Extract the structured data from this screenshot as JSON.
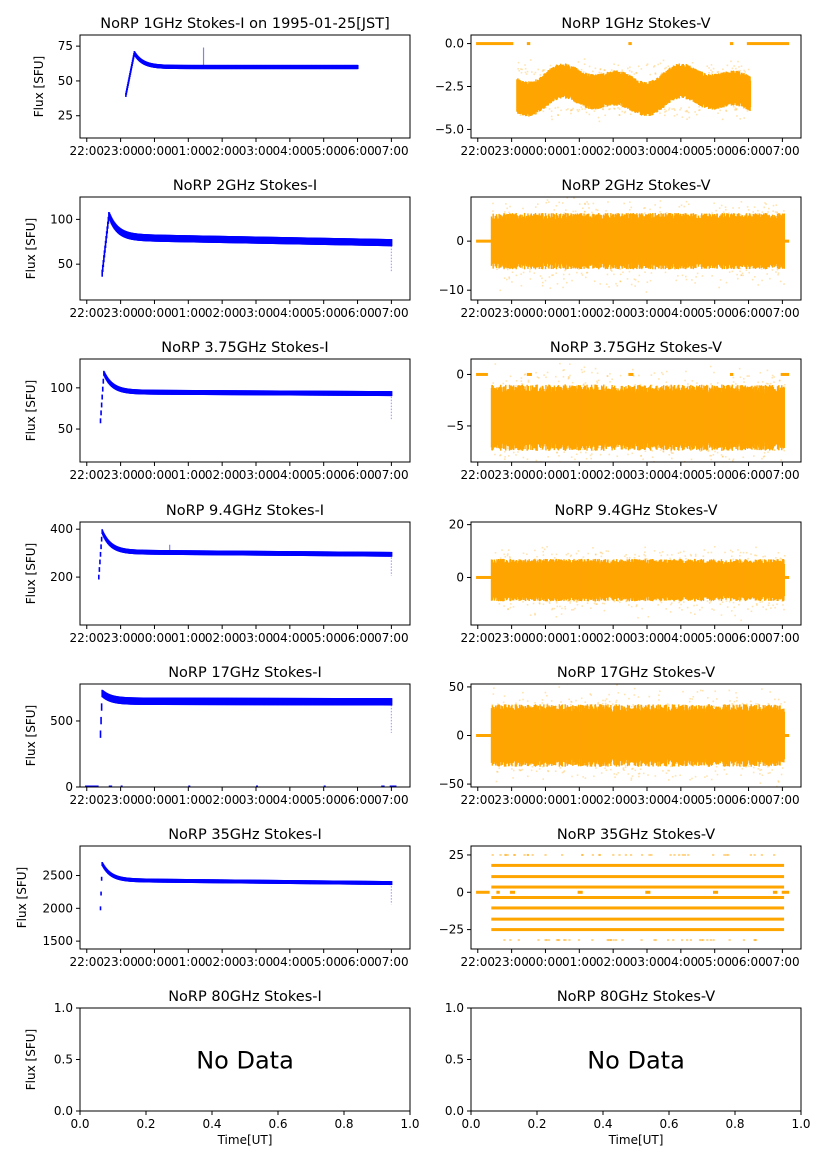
{
  "figure": {
    "date_label": "1995-01-25[JST]",
    "ylabel": "Flux [SFU]",
    "xlabel_bottom": "Time[UT]",
    "no_data_text": "No Data",
    "colors": {
      "stokes_i": "#0000ff",
      "stokes_v": "#ffa500",
      "axes": "#000000"
    }
  },
  "time_axis": {
    "range_hours": [
      -2.2,
      7.55
    ],
    "tick_hours": [
      -2,
      -1,
      0,
      1,
      2,
      3,
      4,
      5,
      6,
      7
    ],
    "tick_labels": [
      "22:00",
      "23:00",
      "00:00",
      "01:00",
      "02:00",
      "03:00",
      "04:00",
      "05:00",
      "06:00",
      "07:00"
    ]
  },
  "chart_data": [
    {
      "id": "i1",
      "type": "scatter",
      "title": "NoRP 1GHz Stokes-I on 1995-01-25[JST]",
      "series": "I",
      "ylim": [
        9,
        83
      ],
      "yticks": [
        25,
        50,
        75
      ],
      "ytick_labels": [
        "25",
        "50",
        "75"
      ],
      "start": -0.85,
      "end": 6.0,
      "rise_from": 40,
      "peak": 70,
      "peak_t": -0.6,
      "level_start": 60,
      "level_end": 60,
      "spread": 1.5,
      "spikes": [
        {
          "t": 1.45,
          "v": 74
        }
      ],
      "zero_marks": []
    },
    {
      "id": "v1",
      "type": "scatter",
      "title": "NoRP 1GHz Stokes-V",
      "series": "V",
      "ylim": [
        -5.5,
        0.5
      ],
      "yticks": [
        0,
        -2.5,
        -5
      ],
      "ytick_labels": [
        "0.0",
        "−2.5",
        "−5.0"
      ],
      "start": -0.85,
      "end": 6.05,
      "center": -2.7,
      "spread": 0.9,
      "wave": 0.6,
      "zero_segments": [
        [
          -2.05,
          -0.95
        ],
        [
          -0.55,
          -0.45
        ],
        [
          2.45,
          2.55
        ],
        [
          5.45,
          5.55
        ],
        [
          5.95,
          7.2
        ]
      ]
    },
    {
      "id": "i2",
      "type": "scatter",
      "title": "NoRP 2GHz Stokes-I",
      "series": "I",
      "ylim": [
        10,
        125
      ],
      "yticks": [
        50,
        100
      ],
      "ytick_labels": [
        "50",
        "100"
      ],
      "start": -1.55,
      "end": 7.0,
      "rise_from": 40,
      "peak": 105,
      "peak_t": -1.35,
      "level_start": 80,
      "level_end": 74,
      "spread": 4,
      "spikes": [],
      "zero_marks": [],
      "end_dip": 42
    },
    {
      "id": "v2",
      "type": "scatter",
      "title": "NoRP 2GHz Stokes-V",
      "series": "V",
      "ylim": [
        -12,
        9
      ],
      "yticks": [
        0,
        -10
      ],
      "ytick_labels": [
        "0",
        "−10"
      ],
      "start": -1.6,
      "end": 7.05,
      "center": 0,
      "spread": 5,
      "wave": 0,
      "zero_segments": [
        [
          -2.05,
          -1.6
        ],
        [
          7.05,
          7.2
        ]
      ]
    },
    {
      "id": "i3",
      "type": "scatter",
      "title": "NoRP 3.75GHz Stokes-I",
      "series": "I",
      "ylim": [
        10,
        135
      ],
      "yticks": [
        50,
        100
      ],
      "ytick_labels": [
        "50",
        "100"
      ],
      "start": -1.6,
      "end": 7.0,
      "rise_from": 60,
      "peak": 118,
      "peak_t": -1.5,
      "level_start": 95,
      "level_end": 93,
      "spread": 3,
      "spikes": [],
      "zero_marks": [],
      "end_dip": 62
    },
    {
      "id": "v3",
      "type": "scatter",
      "title": "NoRP 3.75GHz Stokes-V",
      "series": "V",
      "ylim": [
        -8.5,
        1.5
      ],
      "yticks": [
        0,
        -5
      ],
      "ytick_labels": [
        "0",
        "−5"
      ],
      "start": -1.6,
      "end": 7.05,
      "center": -4.2,
      "spread": 2.8,
      "wave": 0,
      "zero_segments": [
        [
          -2.05,
          -1.7
        ],
        [
          -0.55,
          -0.4
        ],
        [
          2.45,
          2.6
        ],
        [
          5.45,
          5.55
        ],
        [
          6.95,
          7.2
        ]
      ]
    },
    {
      "id": "i4",
      "type": "scatter",
      "title": "NoRP 9.4GHz Stokes-I",
      "series": "I",
      "ylim": [
        0,
        430
      ],
      "yticks": [
        200,
        400
      ],
      "ytick_labels": [
        "200",
        "400"
      ],
      "start": -1.65,
      "end": 7.0,
      "rise_from": 200,
      "peak": 390,
      "peak_t": -1.55,
      "level_start": 305,
      "level_end": 295,
      "spread": 10,
      "spikes": [
        {
          "t": 0.45,
          "v": 335
        }
      ],
      "zero_marks": [],
      "end_dip": 205
    },
    {
      "id": "v4",
      "type": "scatter",
      "title": "NoRP 9.4GHz Stokes-V",
      "series": "V",
      "ylim": [
        -18,
        21
      ],
      "yticks": [
        0,
        20
      ],
      "ytick_labels": [
        "0",
        "20"
      ],
      "start": -1.6,
      "end": 7.05,
      "center": -1,
      "spread": 7,
      "wave": 0,
      "zero_segments": [
        [
          -2.05,
          -1.6
        ],
        [
          7.05,
          7.2
        ]
      ]
    },
    {
      "id": "i5",
      "type": "scatter",
      "title": "NoRP 17GHz Stokes-I",
      "series": "I",
      "ylim": [
        0,
        780
      ],
      "yticks": [
        0,
        500
      ],
      "ytick_labels": [
        "0",
        "500"
      ],
      "start": -1.6,
      "end": 7.0,
      "rise_from": 400,
      "peak": 710,
      "peak_t": -1.55,
      "level_start": 650,
      "level_end": 645,
      "spread": 28,
      "spikes": [],
      "end_dip": 410,
      "zero_marks": [
        [
          -2.05,
          -1.65
        ],
        [
          -1.35,
          -1.25
        ],
        [
          -1.0,
          -0.95
        ],
        [
          1.0,
          1.05
        ],
        [
          3.0,
          3.05
        ],
        [
          5.0,
          5.05
        ],
        [
          6.7,
          6.8
        ],
        [
          6.95,
          7.15
        ]
      ]
    },
    {
      "id": "v5",
      "type": "scatter",
      "title": "NoRP 17GHz Stokes-V",
      "series": "V",
      "ylim": [
        -53,
        53
      ],
      "yticks": [
        50,
        0,
        -50
      ],
      "ytick_labels": [
        "50",
        "0",
        "−50"
      ],
      "start": -1.6,
      "end": 7.05,
      "center": 0,
      "spread": 28,
      "wave": 0,
      "zero_segments": [
        [
          -2.05,
          -1.6
        ],
        [
          7.05,
          7.2
        ]
      ]
    },
    {
      "id": "i6",
      "type": "scatter",
      "title": "NoRP 35GHz Stokes-I",
      "series": "I",
      "ylim": [
        1380,
        2950
      ],
      "yticks": [
        1500,
        2000,
        2500
      ],
      "ytick_labels": [
        "1500",
        "2000",
        "2500"
      ],
      "start": -1.6,
      "end": 7.0,
      "rise_from": 2000,
      "peak": 2680,
      "peak_t": -1.55,
      "level_start": 2430,
      "level_end": 2385,
      "spread": 30,
      "spikes": [],
      "zero_marks": [],
      "end_dip": 2060
    },
    {
      "id": "v6",
      "type": "scatter",
      "title": "NoRP 35GHz Stokes-V",
      "series": "V",
      "ylim": [
        -38,
        31
      ],
      "yticks": [
        25,
        0,
        -25
      ],
      "ytick_labels": [
        "25",
        "0",
        "−25"
      ],
      "start": -1.6,
      "end": 7.05,
      "levels": [
        -32,
        -25,
        -18,
        -10.5,
        -3.5,
        3.5,
        10.5,
        18,
        25
      ],
      "level_weights": [
        0.15,
        0.9,
        1,
        1,
        1,
        1,
        1,
        1,
        0.2
      ],
      "zero_segments": [
        [
          -2.05,
          -1.65
        ],
        [
          -1.45,
          -1.35
        ],
        [
          -1.05,
          -0.9
        ],
        [
          0.95,
          1.1
        ],
        [
          2.95,
          3.1
        ],
        [
          4.95,
          5.1
        ],
        [
          6.72,
          6.85
        ],
        [
          6.98,
          7.2
        ]
      ]
    },
    {
      "id": "i7",
      "type": "empty",
      "title": "NoRP 80GHz Stokes-I",
      "series": "I",
      "ylim": [
        0,
        1
      ],
      "xlim": [
        0,
        1
      ],
      "yticks": [
        0,
        0.5,
        1
      ],
      "ytick_labels": [
        "0.0",
        "0.5",
        "1.0"
      ],
      "xticks": [
        0,
        0.2,
        0.4,
        0.6,
        0.8,
        1.0
      ],
      "xtick_labels": [
        "0.0",
        "0.2",
        "0.4",
        "0.6",
        "0.8",
        "1.0"
      ],
      "annotation": "No Data"
    },
    {
      "id": "v7",
      "type": "empty",
      "title": "NoRP 80GHz Stokes-V",
      "series": "V",
      "ylim": [
        0,
        1
      ],
      "xlim": [
        0,
        1
      ],
      "yticks": [
        0,
        0.5,
        1
      ],
      "ytick_labels": [
        "0.0",
        "0.5",
        "1.0"
      ],
      "xticks": [
        0,
        0.2,
        0.4,
        0.6,
        0.8,
        1.0
      ],
      "xtick_labels": [
        "0.0",
        "0.2",
        "0.4",
        "0.6",
        "0.8",
        "1.0"
      ],
      "annotation": "No Data"
    }
  ]
}
